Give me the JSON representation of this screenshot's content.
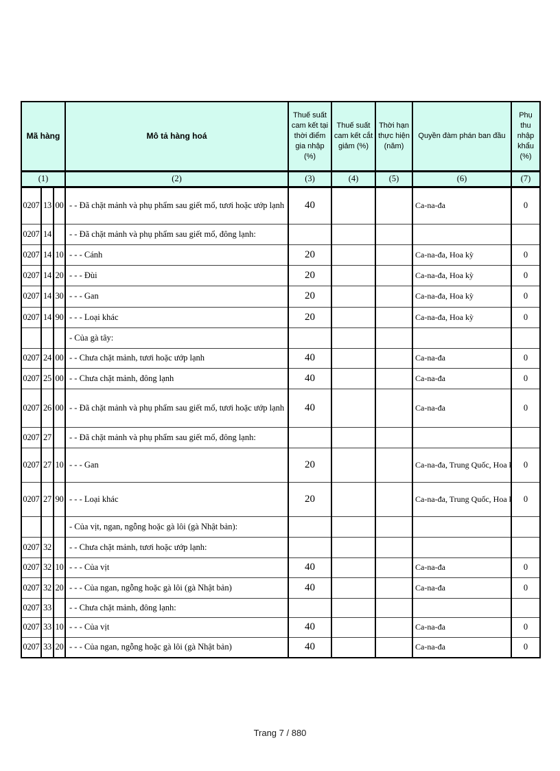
{
  "table": {
    "headers": {
      "ma_hang": "Mã hàng",
      "mo_ta": "Mô tả hàng hoá",
      "entry_rate": "Thuế suất cam kết tại thời điểm gia nhập (%)",
      "cut_rate": "Thuế suất cam kết cắt giảm (%)",
      "term": "Thời hạn thực hiện (năm)",
      "rights": "Quyền đàm phán ban đầu",
      "surcharge": "Phụ thu nhập khẩu (%)"
    },
    "column_numbers": [
      "(1)",
      "(2)",
      "(3)",
      "(4)",
      "(5)",
      "(6)",
      "(7)"
    ],
    "rows": [
      {
        "code1": "0207",
        "code2": "13",
        "code3": "00",
        "desc": "- - Đã chặt mảnh và phụ phẩm sau giết mổ, tươi hoặc ướp lạnh",
        "entry": "40",
        "cut": "",
        "term": "",
        "rights": "Ca-na-đa",
        "sur": "0"
      },
      {
        "code1": "0207",
        "code2": "14",
        "code3": "",
        "desc": "- - Đã chặt mảnh và phụ phẩm sau giết mổ, đông lạnh:",
        "entry": "",
        "cut": "",
        "term": "",
        "rights": "",
        "sur": ""
      },
      {
        "code1": "0207",
        "code2": "14",
        "code3": "10",
        "desc": "- - - Cánh",
        "entry": "20",
        "cut": "",
        "term": "",
        "rights": "Ca-na-đa, Hoa kỳ",
        "sur": "0"
      },
      {
        "code1": "0207",
        "code2": "14",
        "code3": "20",
        "desc": "- - - Đùi",
        "entry": "20",
        "cut": "",
        "term": "",
        "rights": "Ca-na-đa, Hoa kỳ",
        "sur": "0"
      },
      {
        "code1": "0207",
        "code2": "14",
        "code3": "30",
        "desc": "- - - Gan",
        "entry": "20",
        "cut": "",
        "term": "",
        "rights": "Ca-na-đa, Hoa kỳ",
        "sur": "0"
      },
      {
        "code1": "0207",
        "code2": "14",
        "code3": "90",
        "desc": "- - - Loại khác",
        "entry": "20",
        "cut": "",
        "term": "",
        "rights": "Ca-na-đa, Hoa kỳ",
        "sur": "0"
      },
      {
        "code1": "",
        "code2": "",
        "code3": "",
        "desc": "- Của gà tây:",
        "entry": "",
        "cut": "",
        "term": "",
        "rights": "",
        "sur": ""
      },
      {
        "code1": "0207",
        "code2": "24",
        "code3": "00",
        "desc": "- - Chưa chặt mảnh, tươi hoặc ướp lạnh",
        "entry": "40",
        "cut": "",
        "term": "",
        "rights": "Ca-na-đa",
        "sur": "0"
      },
      {
        "code1": "0207",
        "code2": "25",
        "code3": "00",
        "desc": "- - Chưa chặt mảnh, đông lạnh",
        "entry": "40",
        "cut": "",
        "term": "",
        "rights": "Ca-na-đa",
        "sur": "0"
      },
      {
        "code1": "0207",
        "code2": "26",
        "code3": "00",
        "desc": "- - Đã chặt mảnh và phụ phẩm sau giết mổ, tươi hoặc ướp lạnh",
        "entry": "40",
        "cut": "",
        "term": "",
        "rights": "Ca-na-đa",
        "sur": "0"
      },
      {
        "code1": "0207",
        "code2": "27",
        "code3": "",
        "desc": "- - Đã chặt mảnh và phụ phẩm sau giết mổ, đông lạnh:",
        "entry": "",
        "cut": "",
        "term": "",
        "rights": "",
        "sur": ""
      },
      {
        "code1": "0207",
        "code2": "27",
        "code3": "10",
        "desc": "- - - Gan",
        "entry": "20",
        "cut": "",
        "term": "",
        "rights": "Ca-na-đa, Trung Quốc, Hoa kỳ",
        "sur": "0"
      },
      {
        "code1": "0207",
        "code2": "27",
        "code3": "90",
        "desc": "- - - Loại khác",
        "entry": "20",
        "cut": "",
        "term": "",
        "rights": "Ca-na-đa, Trung Quốc, Hoa kỳ",
        "sur": "0"
      },
      {
        "code1": "",
        "code2": "",
        "code3": "",
        "desc": "- Của vịt, ngan, ngỗng hoặc gà lôi (gà Nhật bản):",
        "entry": "",
        "cut": "",
        "term": "",
        "rights": "",
        "sur": ""
      },
      {
        "code1": "0207",
        "code2": "32",
        "code3": "",
        "desc": "- - Chưa chặt mảnh, tươi hoặc ướp lạnh:",
        "entry": "",
        "cut": "",
        "term": "",
        "rights": "",
        "sur": ""
      },
      {
        "code1": "0207",
        "code2": "32",
        "code3": "10",
        "desc": "- - - Của vịt",
        "entry": "40",
        "cut": "",
        "term": "",
        "rights": "Ca-na-đa",
        "sur": "0"
      },
      {
        "code1": "0207",
        "code2": "32",
        "code3": "20",
        "desc": "- - - Của ngan, ngỗng hoặc gà lôi (gà Nhật bản)",
        "entry": "40",
        "cut": "",
        "term": "",
        "rights": "Ca-na-đa",
        "sur": "0"
      },
      {
        "code1": "0207",
        "code2": "33",
        "code3": "",
        "desc": "- - Chưa chặt mảnh, đông lạnh:",
        "entry": "",
        "cut": "",
        "term": "",
        "rights": "",
        "sur": ""
      },
      {
        "code1": "0207",
        "code2": "33",
        "code3": "10",
        "desc": "- - - Của vịt",
        "entry": "40",
        "cut": "",
        "term": "",
        "rights": "Ca-na-đa",
        "sur": "0"
      },
      {
        "code1": "0207",
        "code2": "33",
        "code3": "20",
        "desc": "- - - Của ngan, ngỗng hoặc gà lôi (gà Nhật bản)",
        "entry": "40",
        "cut": "",
        "term": "",
        "rights": "Ca-na-đa",
        "sur": "0"
      }
    ]
  },
  "footer": {
    "page_label": "Trang 7 / 880"
  },
  "colors": {
    "header_bg": "#d2fbf0",
    "border": "#000000"
  }
}
